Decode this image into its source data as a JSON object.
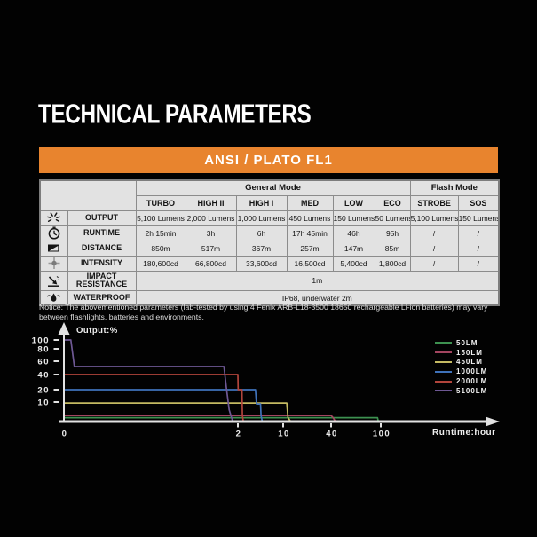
{
  "page": {
    "title": "TECHNICAL PARAMETERS"
  },
  "banner": {
    "label": "ANSI / PLATO FL1",
    "color": "#e8842e"
  },
  "table": {
    "group_headers": [
      "General Mode",
      "Flash Mode"
    ],
    "mode_headers": [
      "TURBO",
      "HIGH II",
      "HIGH I",
      "MED",
      "LOW",
      "ECO",
      "STROBE",
      "SOS"
    ],
    "rows": [
      {
        "icon": "output-icon",
        "label": "OUTPUT",
        "values": [
          "5,100 Lumens",
          "2,000 Lumens",
          "1,000 Lumens",
          "450 Lumens",
          "150 Lumens",
          "50 Lumens",
          "5,100 Lumens",
          "150 Lumens"
        ]
      },
      {
        "icon": "runtime-icon",
        "label": "RUNTIME",
        "values": [
          "2h 15min",
          "3h",
          "6h",
          "17h 45min",
          "46h",
          "95h",
          "/",
          "/"
        ]
      },
      {
        "icon": "distance-icon",
        "label": "DISTANCE",
        "values": [
          "850m",
          "517m",
          "367m",
          "257m",
          "147m",
          "85m",
          "/",
          "/"
        ]
      },
      {
        "icon": "intensity-icon",
        "label": "INTENSITY",
        "values": [
          "180,600cd",
          "66,800cd",
          "33,600cd",
          "16,500cd",
          "5,400cd",
          "1,800cd",
          "/",
          "/"
        ]
      },
      {
        "icon": "impact-icon",
        "label": "IMPACT RESISTANCE",
        "value": "1m"
      },
      {
        "icon": "waterproof-icon",
        "label": "WATERPROOF",
        "value": "IP68, underwater 2m"
      }
    ]
  },
  "notice": "Notice: The abovementioned parameters (lab-tested by using 4 Fenix ARB-L18-3500 18650 rechargeable Li-ion batteries) may vary between flashlights, batteries and environments.",
  "chart_data": {
    "type": "line",
    "title": "",
    "xlabel": "Runtime:hour",
    "ylabel": "Output:%",
    "x_ticks": [
      0,
      2,
      10,
      40,
      100
    ],
    "y_ticks": [
      10,
      20,
      40,
      60,
      80,
      100
    ],
    "ylim": [
      0,
      100
    ],
    "grid": false,
    "legend_position": "top-right",
    "axis_note": "both axes are non-linear (compressed), values interpolated between labeled ticks",
    "series": [
      {
        "name": "50LM",
        "color": "#3d9150",
        "points": [
          [
            0,
            1.8
          ],
          [
            96,
            1.8
          ],
          [
            97,
            0
          ]
        ]
      },
      {
        "name": "150LM",
        "color": "#a34560",
        "points": [
          [
            0,
            3
          ],
          [
            40,
            3
          ],
          [
            42,
            2
          ],
          [
            45,
            0
          ]
        ]
      },
      {
        "name": "450LM",
        "color": "#c4ba62",
        "points": [
          [
            0,
            9.5
          ],
          [
            12.3,
            9.5
          ],
          [
            13,
            2
          ],
          [
            14.5,
            0
          ]
        ]
      },
      {
        "name": "1000LM",
        "color": "#3f72ba",
        "points": [
          [
            0,
            20
          ],
          [
            5.1,
            20
          ],
          [
            5.3,
            9
          ],
          [
            6.0,
            9
          ],
          [
            6.1,
            3
          ],
          [
            6.3,
            0
          ]
        ]
      },
      {
        "name": "2000LM",
        "color": "#b2453c",
        "points": [
          [
            0,
            40
          ],
          [
            2.0,
            40
          ],
          [
            2.05,
            20
          ],
          [
            2.72,
            20
          ],
          [
            2.8,
            3
          ],
          [
            2.95,
            0
          ]
        ]
      },
      {
        "name": "5100LM",
        "color": "#6e5894",
        "points": [
          [
            0,
            100
          ],
          [
            0.08,
            100
          ],
          [
            0.12,
            52
          ],
          [
            1.84,
            52
          ],
          [
            1.87,
            20
          ],
          [
            1.9,
            6
          ],
          [
            1.94,
            0
          ]
        ]
      }
    ]
  }
}
